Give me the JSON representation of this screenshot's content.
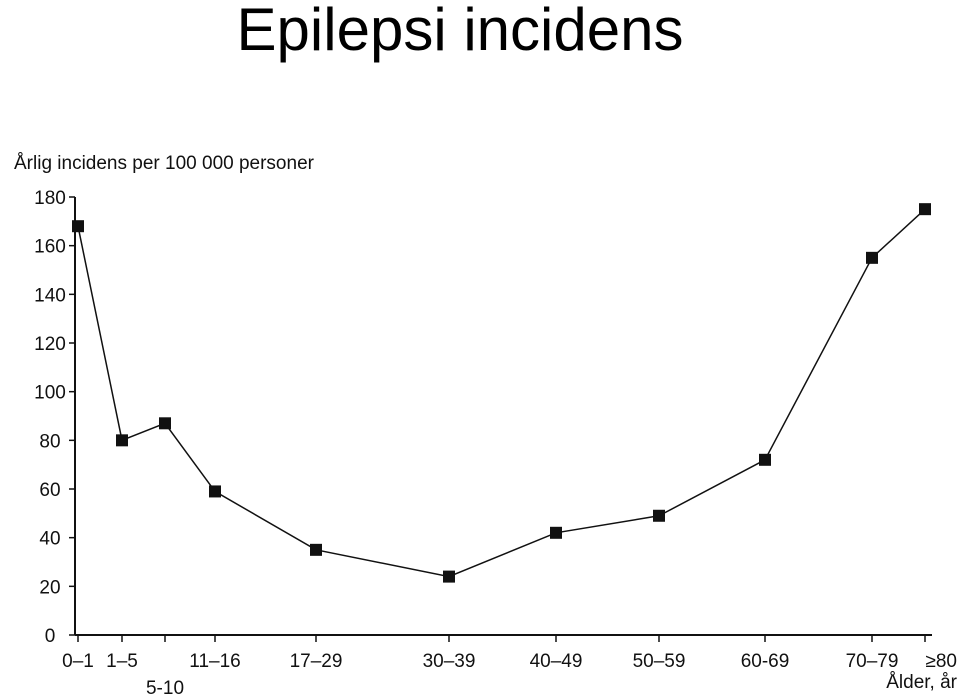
{
  "slide": {
    "title": "Epilepsi incidens"
  },
  "chart_data": {
    "type": "line",
    "ylabel": "Årlig incidens per 100 000 personer",
    "xlabel": "Ålder, år",
    "ylim": [
      0,
      180
    ],
    "yticks": [
      0,
      20,
      40,
      60,
      80,
      100,
      120,
      140,
      160,
      180
    ],
    "x_tick_labels": [
      {
        "label": "0–1",
        "age": 0.5
      },
      {
        "label": "1–5",
        "age": 3
      },
      {
        "label": "5-10",
        "age": 7.5
      },
      {
        "label": "11–16",
        "age": 13.5
      },
      {
        "label": "17–29",
        "age": 23
      },
      {
        "label": "30–39",
        "age": 34.5
      },
      {
        "label": "40–49",
        "age": 44.5
      },
      {
        "label": "50–59",
        "age": 54.5
      },
      {
        "label": "60-69",
        "age": 64.5
      },
      {
        "label": "70–79",
        "age": 74.5
      },
      {
        "label": "≥80",
        "age": 80
      }
    ],
    "points": [
      {
        "age": 0.5,
        "value": 168
      },
      {
        "age": 3,
        "value": 80
      },
      {
        "age": 7.5,
        "value": 87
      },
      {
        "age": 13.5,
        "value": 59
      },
      {
        "age": 23,
        "value": 35
      },
      {
        "age": 34.5,
        "value": 24
      },
      {
        "age": 44.5,
        "value": 42
      },
      {
        "age": 54.5,
        "value": 49
      },
      {
        "age": 64.5,
        "value": 72
      },
      {
        "age": 74.5,
        "value": 155
      },
      {
        "age": 80,
        "value": 175
      }
    ],
    "grid": false,
    "line_color": "#111111",
    "marker": "square"
  }
}
